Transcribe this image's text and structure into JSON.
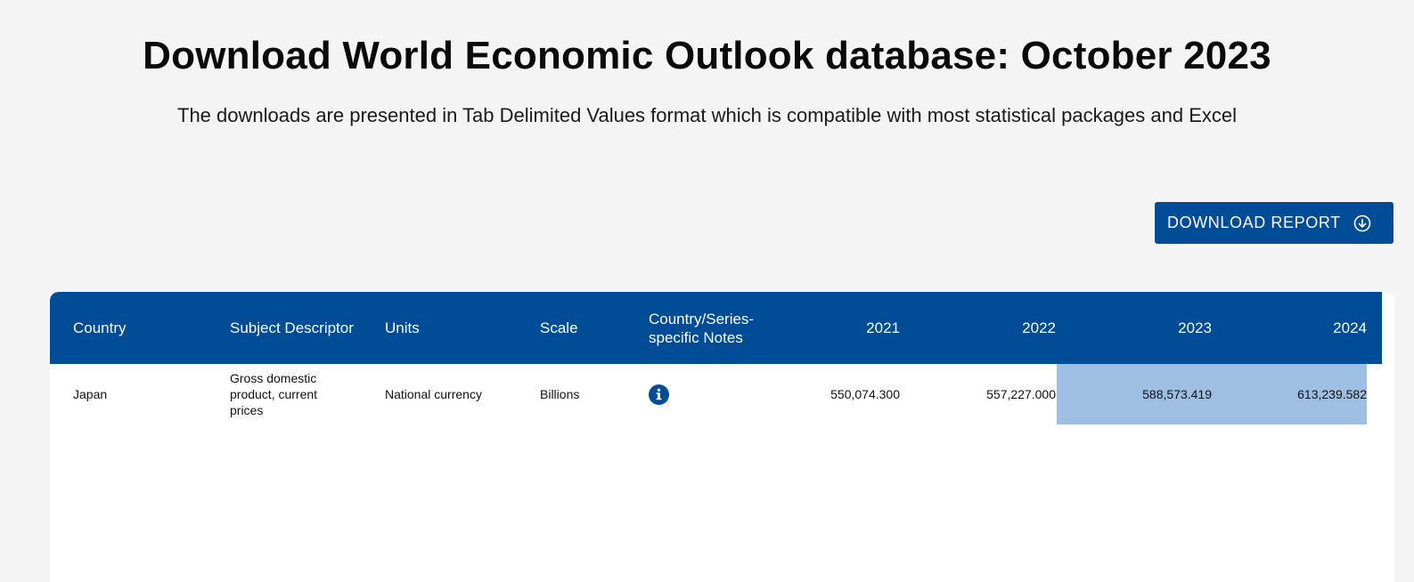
{
  "header": {
    "title": "Download World Economic Outlook database: October 2023",
    "subtitle": "The downloads are presented in Tab Delimited Values format which is compatible with most statistical packages and Excel"
  },
  "toolbar": {
    "download_label": "DOWNLOAD REPORT",
    "download_icon": "download-circle-icon"
  },
  "table": {
    "columns": [
      "Country",
      "Subject Descriptor",
      "Units",
      "Scale",
      "Country/Series-specific Notes",
      "2021",
      "2022",
      "2023",
      "2024"
    ],
    "rows": [
      {
        "country": "Japan",
        "subject": "Gross domestic product, current prices",
        "units": "National currency",
        "scale": "Billions",
        "notes_icon": "info-icon",
        "values": [
          "550,074.300",
          "557,227.000",
          "588,573.419",
          "613,239.582"
        ],
        "highlighted_years": [
          "2023",
          "2024"
        ]
      }
    ]
  },
  "colors": {
    "brand_blue": "#004c97",
    "highlight": "#9ebfe2",
    "background": "#f4f4f4"
  }
}
